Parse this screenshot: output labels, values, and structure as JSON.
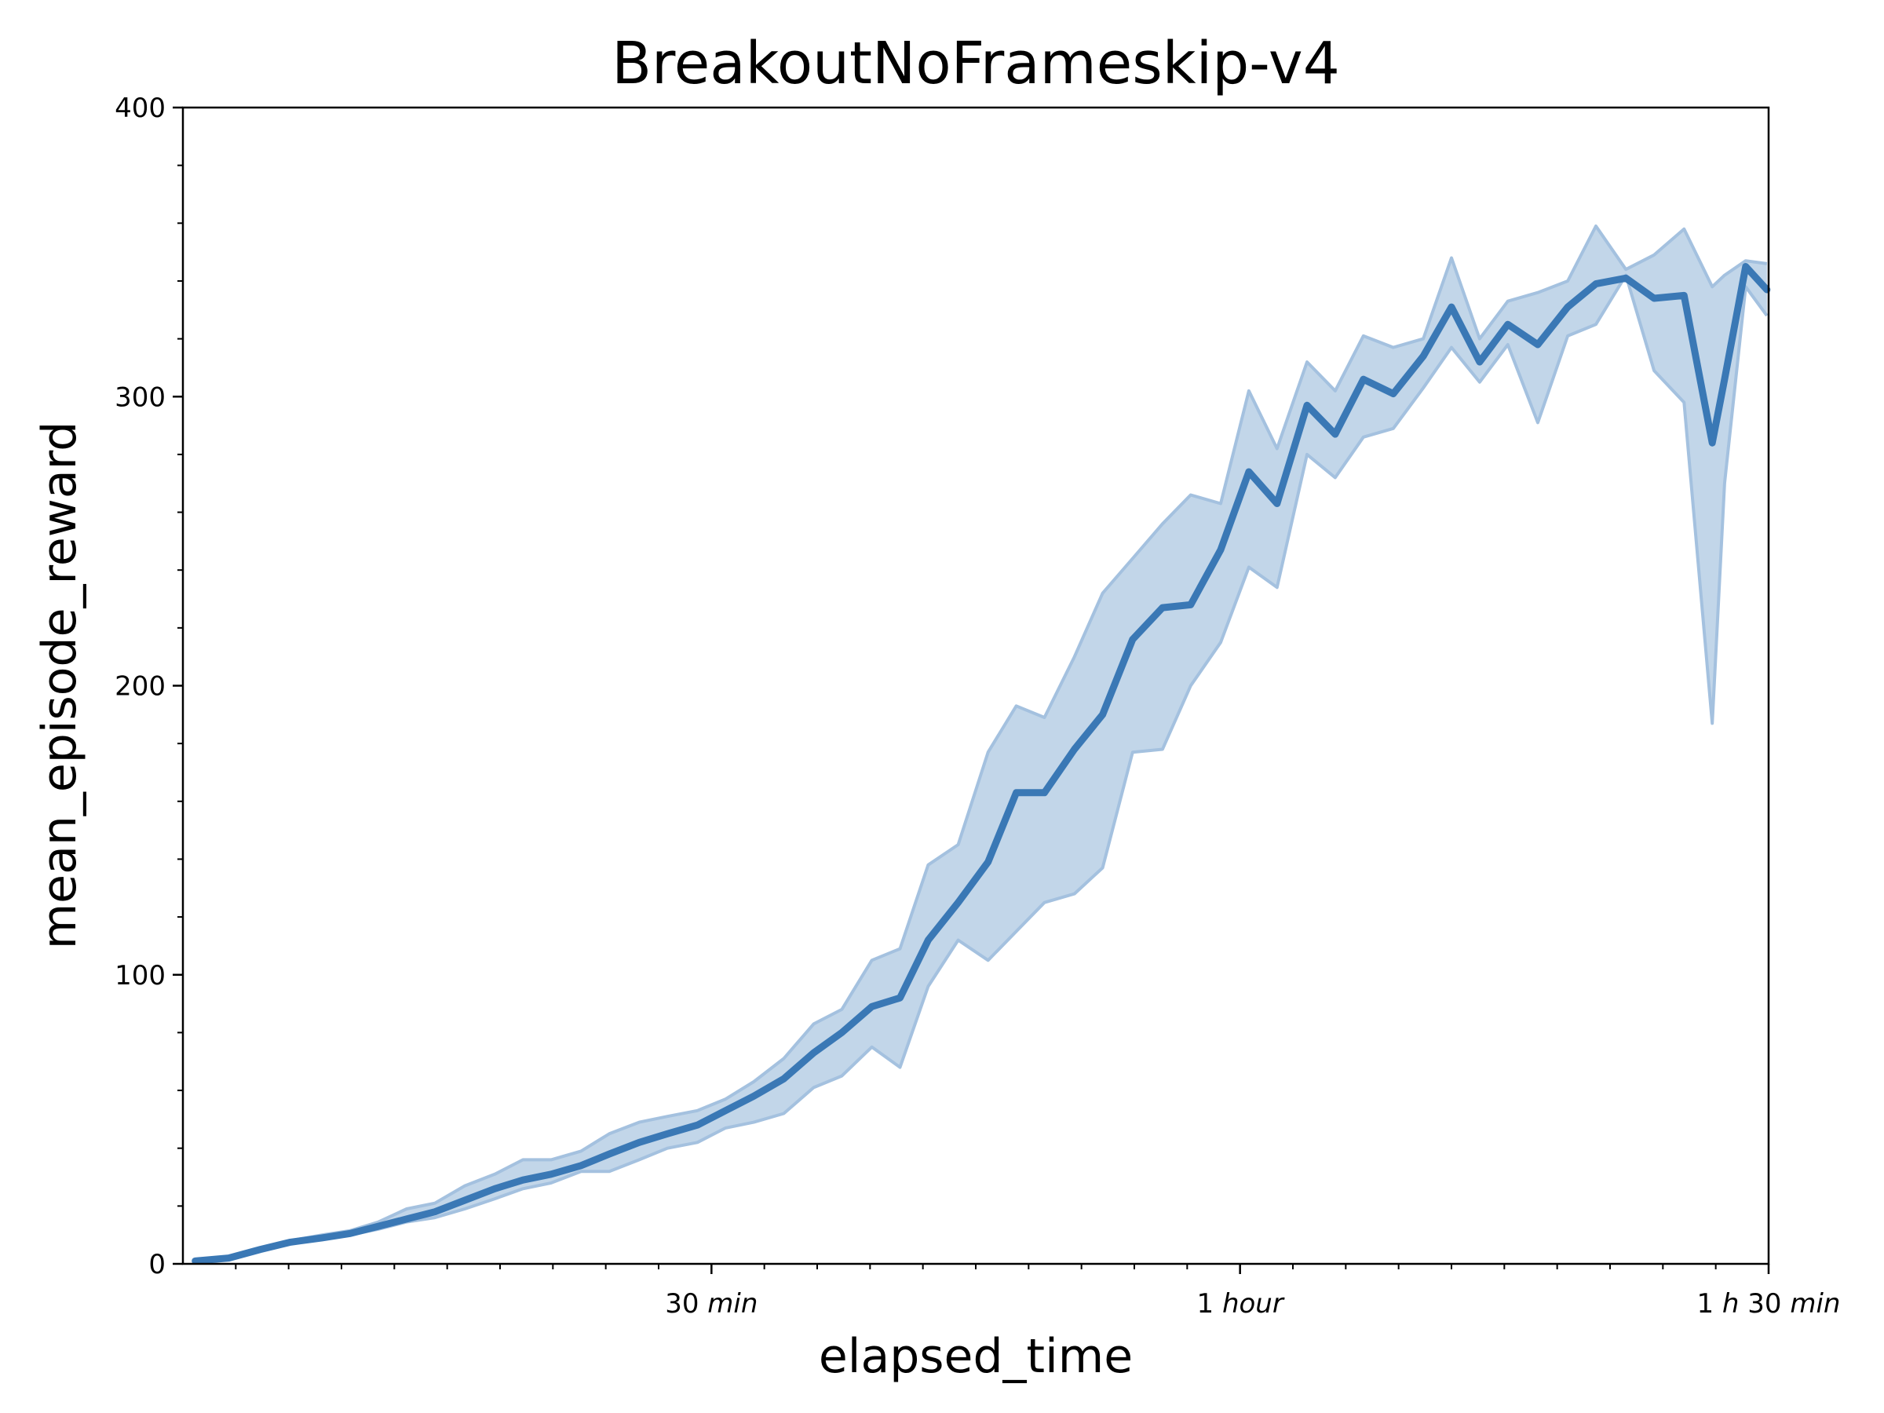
{
  "chart_data": {
    "type": "line",
    "title": "BreakoutNoFrameskip-v4",
    "xlabel": "elapsed_time",
    "ylabel": "mean_episode_reward",
    "xlim": [
      0,
      90
    ],
    "ylim": [
      0,
      400
    ],
    "grid": false,
    "legend": "none",
    "x_ticks": [
      {
        "value": 30,
        "num": "30",
        "unit": "min"
      },
      {
        "value": 60,
        "num": "1",
        "unit": "hour"
      },
      {
        "value": 90,
        "num": "1",
        "unit": "h",
        "num2": "30",
        "unit2": "min"
      }
    ],
    "x_minor_ticks": [
      3,
      6,
      9,
      12,
      15,
      18,
      21,
      24,
      27,
      33,
      36,
      39,
      42,
      45,
      48,
      51,
      54,
      57,
      63,
      66,
      69,
      72,
      75,
      78,
      81,
      84,
      87
    ],
    "y_ticks": [
      0,
      100,
      200,
      300,
      400
    ],
    "y_minor_step": 20,
    "colors": {
      "line": "#3a78b5",
      "band": "#c2d6e9",
      "band_edge": "#a4c1df"
    },
    "series": [
      {
        "x": [
          0.7,
          2.6,
          4.4,
          6.1,
          7.9,
          9.5,
          11.1,
          12.7,
          14.3,
          16.0,
          17.7,
          19.3,
          20.9,
          22.6,
          24.2,
          25.9,
          27.5,
          29.2,
          30.8,
          32.4,
          34.1,
          35.8,
          37.4,
          39.1,
          40.7,
          42.3,
          44.0,
          45.7,
          47.3,
          48.9,
          50.6,
          52.2,
          53.9,
          55.6,
          57.2,
          58.9,
          60.5,
          62.1,
          63.8,
          65.4,
          67.0,
          68.7,
          70.4,
          72.0,
          73.6,
          75.2,
          76.9,
          78.6,
          80.2,
          81.9,
          83.5,
          85.2,
          86.8,
          87.5,
          88.7,
          89.9
        ],
        "mean": [
          1,
          2,
          5,
          7.5,
          9,
          10.5,
          13,
          15.5,
          18,
          22,
          26,
          29,
          31,
          34,
          38,
          42,
          45,
          48,
          53,
          58,
          64,
          73,
          80,
          89,
          92,
          112,
          125,
          139,
          163,
          163,
          178,
          190,
          216,
          227,
          228,
          247,
          274,
          263,
          297,
          287,
          306,
          301,
          314,
          331,
          312,
          325,
          318,
          331,
          339,
          341,
          334,
          335,
          284,
          306,
          345,
          337
        ],
        "upper": [
          1.5,
          2.5,
          5.5,
          8,
          10,
          11.5,
          14.5,
          19,
          21,
          27,
          31,
          36,
          36,
          39,
          45,
          49,
          51,
          53,
          57,
          63,
          71,
          83,
          88,
          105,
          109,
          138,
          145,
          177,
          193,
          189,
          210,
          232,
          244,
          256,
          266,
          263,
          302,
          282,
          312,
          302,
          321,
          317,
          320,
          348,
          320,
          333,
          336,
          340,
          359,
          344,
          349,
          358,
          338,
          342,
          347,
          346
        ],
        "lower": [
          0.5,
          1.5,
          4.5,
          7,
          8.5,
          10,
          12,
          14.5,
          16,
          19,
          22.5,
          26,
          28,
          32,
          32,
          36,
          40,
          42,
          47,
          49,
          52,
          61,
          65,
          75,
          68,
          96,
          112,
          105,
          115,
          125,
          128,
          137,
          177,
          178,
          200,
          215,
          241,
          234,
          280,
          272,
          286,
          289,
          303,
          317,
          305,
          318,
          291,
          321,
          325,
          342,
          309,
          298,
          187,
          270,
          338,
          328
        ]
      }
    ]
  }
}
